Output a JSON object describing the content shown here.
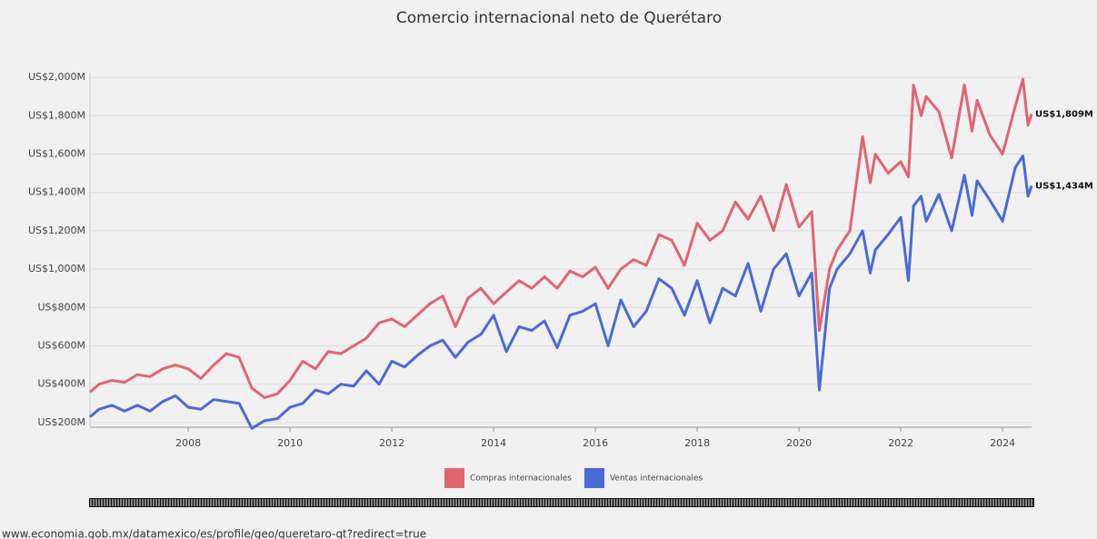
{
  "chart_data": {
    "type": "line",
    "title": "Comercio internacional neto de Querétaro",
    "x": [
      2006.07,
      2006.25,
      2006.5,
      2006.75,
      2007,
      2007.25,
      2007.5,
      2007.75,
      2008,
      2008.25,
      2008.5,
      2008.75,
      2009,
      2009.25,
      2009.5,
      2009.75,
      2010,
      2010.25,
      2010.5,
      2010.75,
      2011,
      2011.25,
      2011.5,
      2011.75,
      2012,
      2012.25,
      2012.5,
      2012.75,
      2013,
      2013.25,
      2013.5,
      2013.75,
      2014,
      2014.25,
      2014.5,
      2014.75,
      2015,
      2015.25,
      2015.5,
      2015.75,
      2016,
      2016.25,
      2016.5,
      2016.75,
      2017,
      2017.25,
      2017.5,
      2017.75,
      2018,
      2018.25,
      2018.5,
      2018.75,
      2019,
      2019.25,
      2019.5,
      2019.75,
      2020,
      2020.25,
      2020.4,
      2020.6,
      2020.75,
      2021,
      2021.25,
      2021.4,
      2021.5,
      2021.75,
      2022,
      2022.15,
      2022.25,
      2022.4,
      2022.5,
      2022.75,
      2023,
      2023.25,
      2023.4,
      2023.5,
      2023.75,
      2024,
      2024.25,
      2024.4,
      2024.5,
      2024.57
    ],
    "series": [
      {
        "name": "Compras internacionales",
        "color": "#e06570",
        "end_label": "US$1,809M",
        "values": [
          360,
          400,
          420,
          410,
          450,
          440,
          480,
          500,
          480,
          430,
          500,
          560,
          540,
          380,
          330,
          350,
          420,
          520,
          480,
          570,
          560,
          600,
          640,
          720,
          740,
          700,
          760,
          820,
          860,
          700,
          850,
          900,
          820,
          880,
          940,
          900,
          960,
          900,
          990,
          960,
          1010,
          900,
          1000,
          1050,
          1020,
          1180,
          1150,
          1020,
          1240,
          1150,
          1200,
          1350,
          1260,
          1380,
          1200,
          1440,
          1220,
          1300,
          680,
          1000,
          1100,
          1200,
          1690,
          1450,
          1600,
          1500,
          1560,
          1480,
          1960,
          1800,
          1900,
          1820,
          1580,
          1960,
          1720,
          1880,
          1700,
          1600,
          1850,
          1990,
          1750,
          1809
        ]
      },
      {
        "name": "Ventas internacionales",
        "color": "#4a6bd6",
        "end_label": "US$1,434M",
        "values": [
          230,
          270,
          290,
          260,
          290,
          260,
          310,
          340,
          280,
          270,
          320,
          310,
          300,
          170,
          210,
          220,
          280,
          300,
          370,
          350,
          400,
          390,
          470,
          400,
          520,
          490,
          550,
          600,
          630,
          540,
          620,
          660,
          760,
          570,
          700,
          680,
          730,
          590,
          760,
          780,
          820,
          600,
          840,
          700,
          780,
          950,
          900,
          760,
          940,
          720,
          900,
          860,
          1030,
          780,
          1000,
          1080,
          860,
          980,
          370,
          900,
          1000,
          1080,
          1200,
          980,
          1100,
          1180,
          1270,
          940,
          1330,
          1380,
          1250,
          1390,
          1200,
          1490,
          1280,
          1460,
          1360,
          1250,
          1530,
          1590,
          1380,
          1434
        ]
      }
    ],
    "xlim": [
      2006.07,
      2024.57
    ],
    "xticks": [
      2008,
      2010,
      2012,
      2014,
      2016,
      2018,
      2020,
      2022,
      2024
    ],
    "ylim": [
      176,
      2024
    ],
    "yticks": [
      {
        "value": 200,
        "label": "US$200M"
      },
      {
        "value": 400,
        "label": "US$400M"
      },
      {
        "value": 600,
        "label": "US$600M"
      },
      {
        "value": 800,
        "label": "US$800M"
      },
      {
        "value": 1000,
        "label": "US$1,000M"
      },
      {
        "value": 1200,
        "label": "US$1,200M"
      },
      {
        "value": 1400,
        "label": "US$1,400M"
      },
      {
        "value": 1600,
        "label": "US$1,600M"
      },
      {
        "value": 1800,
        "label": "US$1,800M"
      },
      {
        "value": 2000,
        "label": "US$2,000M"
      }
    ],
    "grid": true,
    "legend": "bottom"
  },
  "url": "www.economia.gob.mx/datamexico/es/profile/geo/queretaro-qt?redirect=true"
}
